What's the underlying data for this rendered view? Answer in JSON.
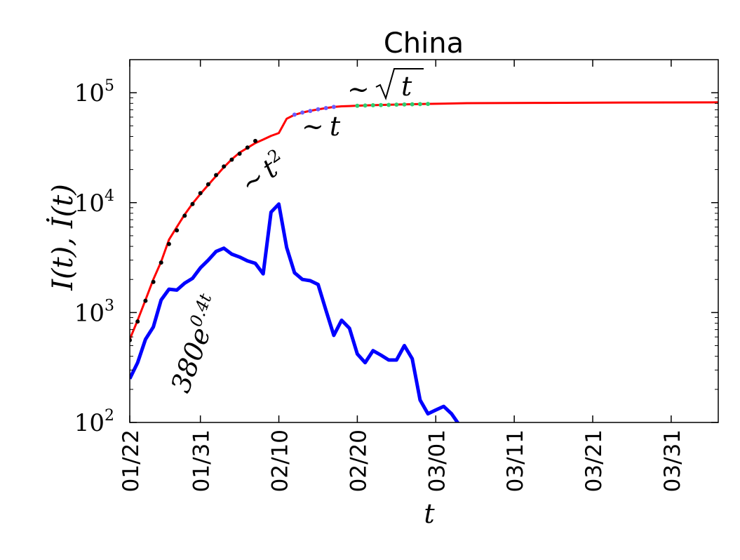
{
  "chart_data": {
    "type": "line",
    "title": "China",
    "xlabel": "t",
    "ylabel": "I(t), İ(t)",
    "y_scale": "log",
    "ylim": [
      100,
      200000
    ],
    "xlim": [
      "2020-01-22",
      "2020-04-06"
    ],
    "grid": false,
    "x_ticks": [
      {
        "date": "2020-01-22",
        "label": "01/22"
      },
      {
        "date": "2020-01-31",
        "label": "01/31"
      },
      {
        "date": "2020-02-10",
        "label": "02/10"
      },
      {
        "date": "2020-02-20",
        "label": "02/20"
      },
      {
        "date": "2020-03-01",
        "label": "03/01"
      },
      {
        "date": "2020-03-11",
        "label": "03/11"
      },
      {
        "date": "2020-03-21",
        "label": "03/21"
      },
      {
        "date": "2020-03-31",
        "label": "03/31"
      }
    ],
    "y_ticks": [
      {
        "value": 100,
        "base": "10",
        "exp": "2"
      },
      {
        "value": 1000,
        "base": "10",
        "exp": "3"
      },
      {
        "value": 10000,
        "base": "10",
        "exp": "4"
      },
      {
        "value": 100000,
        "base": "10",
        "exp": "5"
      }
    ],
    "series": [
      {
        "color": "#ff0000",
        "x": [
          "2020-01-22",
          "2020-01-23",
          "2020-01-24",
          "2020-01-25",
          "2020-01-26",
          "2020-01-27",
          "2020-01-28",
          "2020-01-29",
          "2020-01-30",
          "2020-01-31",
          "2020-02-01",
          "2020-02-02",
          "2020-02-03",
          "2020-02-04",
          "2020-02-05",
          "2020-02-06",
          "2020-02-07",
          "2020-02-08",
          "2020-02-09",
          "2020-02-10",
          "2020-02-11",
          "2020-02-12",
          "2020-02-13",
          "2020-02-14",
          "2020-02-15",
          "2020-02-16",
          "2020-02-17",
          "2020-02-18",
          "2020-02-19",
          "2020-02-20",
          "2020-02-22",
          "2020-02-25",
          "2020-02-28",
          "2020-03-05",
          "2020-03-15",
          "2020-03-25",
          "2020-04-06"
        ],
        "y": [
          570,
          850,
          1300,
          2000,
          2900,
          4600,
          6000,
          7800,
          9800,
          12000,
          14500,
          17500,
          21000,
          24800,
          28500,
          31500,
          34800,
          37500,
          40500,
          43000,
          58000,
          63000,
          66000,
          68500,
          70500,
          72500,
          74300,
          75200,
          75700,
          76200,
          77000,
          78000,
          78900,
          80400,
          80800,
          81400,
          81800
        ]
      },
      {
        "color": "#0000ff",
        "x": [
          "2020-01-22",
          "2020-01-23",
          "2020-01-24",
          "2020-01-25",
          "2020-01-26",
          "2020-01-27",
          "2020-01-28",
          "2020-01-29",
          "2020-01-30",
          "2020-01-31",
          "2020-02-01",
          "2020-02-02",
          "2020-02-03",
          "2020-02-04",
          "2020-02-05",
          "2020-02-06",
          "2020-02-07",
          "2020-02-08",
          "2020-02-09",
          "2020-02-10",
          "2020-02-11",
          "2020-02-12",
          "2020-02-13",
          "2020-02-14",
          "2020-02-15",
          "2020-02-16",
          "2020-02-17",
          "2020-02-18",
          "2020-02-19",
          "2020-02-20",
          "2020-02-21",
          "2020-02-22",
          "2020-02-23",
          "2020-02-24",
          "2020-02-25",
          "2020-02-26",
          "2020-02-27",
          "2020-02-28",
          "2020-02-29",
          "2020-03-01",
          "2020-03-02",
          "2020-03-03",
          "2020-03-04"
        ],
        "y": [
          250,
          350,
          570,
          740,
          1300,
          1630,
          1600,
          1850,
          2050,
          2550,
          3000,
          3600,
          3850,
          3400,
          3200,
          2950,
          2800,
          2250,
          8200,
          9700,
          3900,
          2300,
          2000,
          1950,
          1800,
          1050,
          620,
          850,
          720,
          420,
          350,
          450,
          410,
          370,
          370,
          500,
          380,
          160,
          120,
          130,
          140,
          120,
          95
        ]
      }
    ],
    "fit_markers": [
      {
        "color": "#000000",
        "x": [
          "2020-01-22",
          "2020-01-23",
          "2020-01-24",
          "2020-01-25",
          "2020-01-26",
          "2020-01-27",
          "2020-01-28",
          "2020-01-29",
          "2020-01-30",
          "2020-01-31",
          "2020-02-01",
          "2020-02-02",
          "2020-02-03",
          "2020-02-04",
          "2020-02-05",
          "2020-02-06",
          "2020-02-07"
        ],
        "y": [
          560,
          830,
          1280,
          1900,
          2850,
          4200,
          5600,
          7600,
          9700,
          12200,
          14700,
          17800,
          21300,
          24600,
          27900,
          31700,
          36400
        ]
      },
      {
        "color": "#6a5cff",
        "x": [
          "2020-02-12",
          "2020-02-13",
          "2020-02-14",
          "2020-02-15",
          "2020-02-16",
          "2020-02-17"
        ],
        "y": [
          63200,
          66000,
          68300,
          70600,
          72500,
          74200
        ]
      },
      {
        "color": "#2ecc71",
        "x": [
          "2020-02-20",
          "2020-02-21",
          "2020-02-22",
          "2020-02-23",
          "2020-02-24",
          "2020-02-25",
          "2020-02-26",
          "2020-02-27",
          "2020-02-28",
          "2020-02-29"
        ],
        "y": [
          76100,
          76500,
          76900,
          77200,
          77500,
          77900,
          78200,
          78500,
          78800,
          79100
        ]
      }
    ],
    "annotations": {
      "exp_coef": "380",
      "exp_base": "e",
      "exp_power": "0.4t",
      "t2_base": "t",
      "t2_sup": "2",
      "t_label": "t",
      "sqrt_label": "t"
    }
  }
}
